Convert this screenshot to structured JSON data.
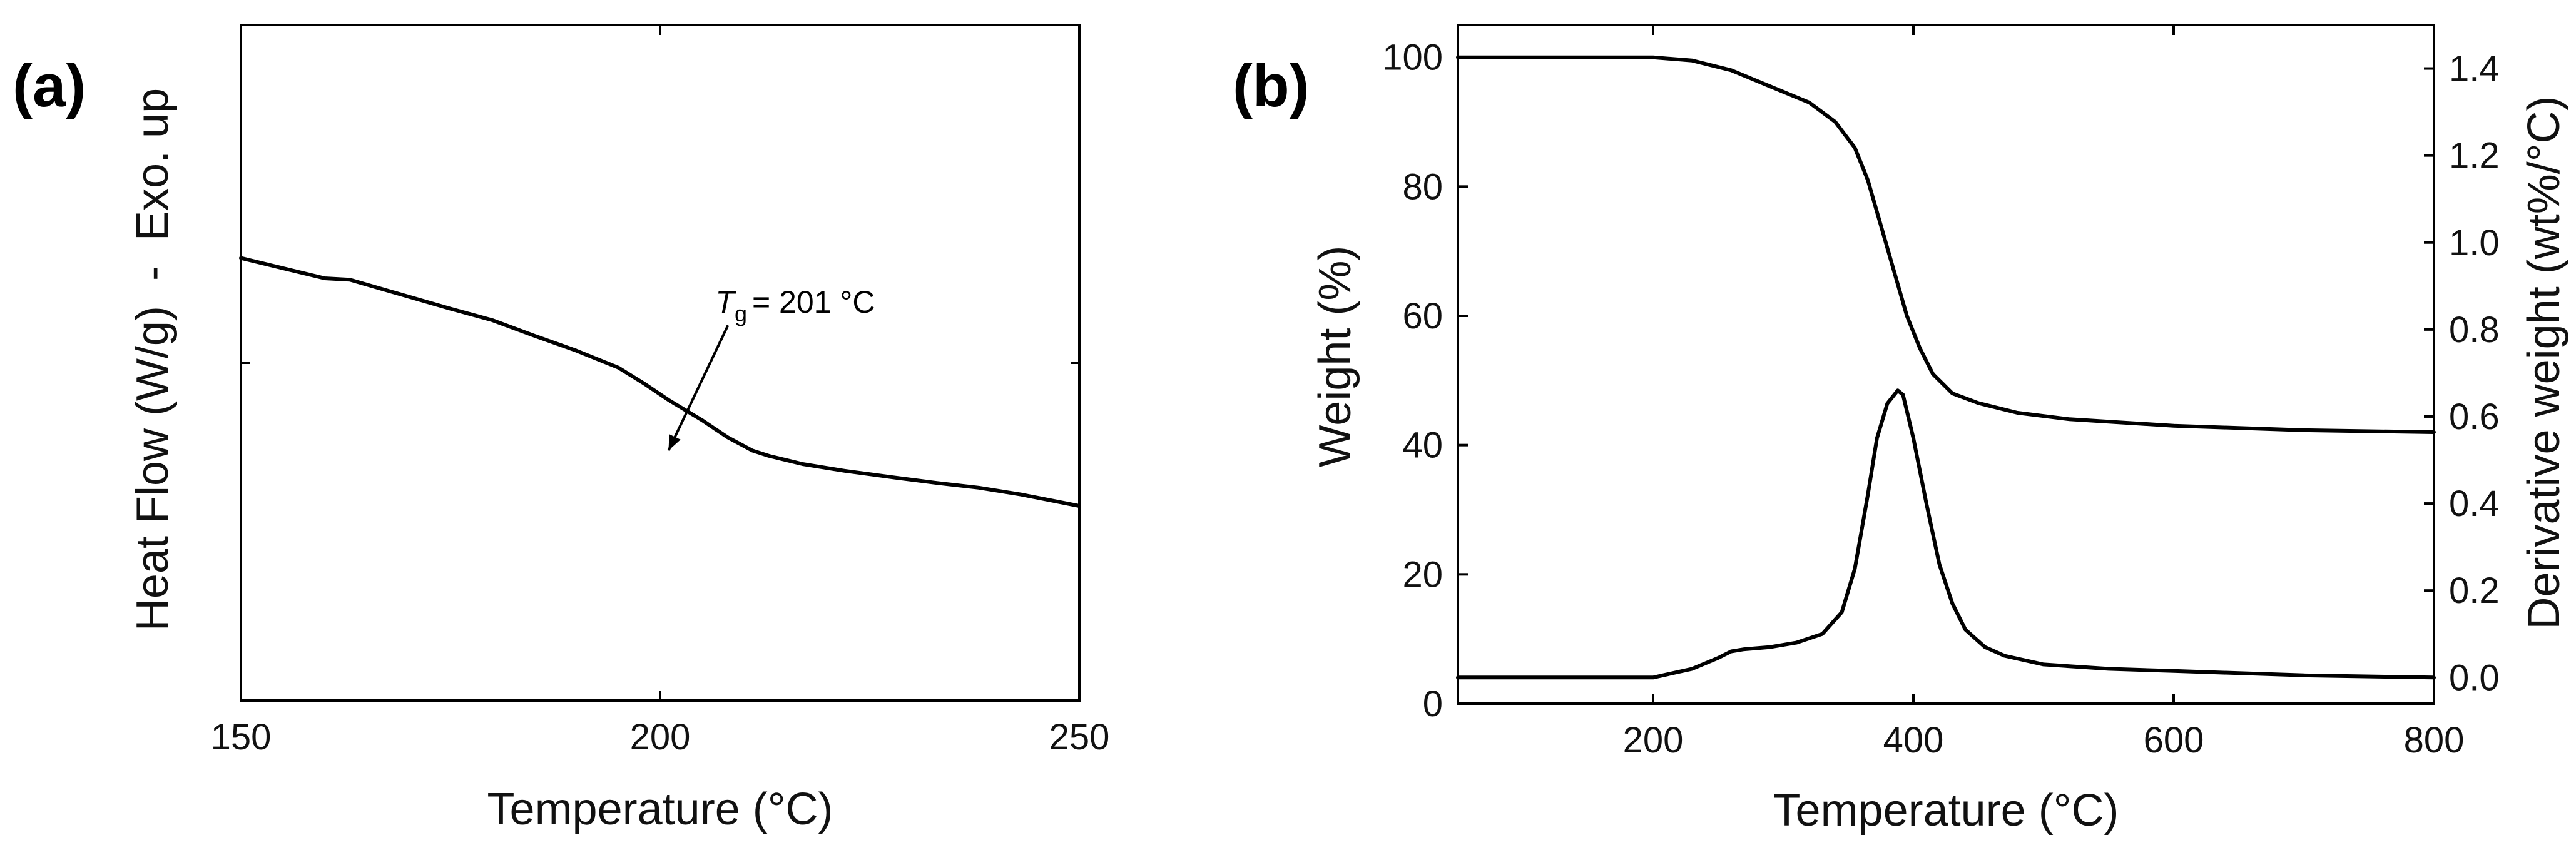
{
  "panels": {
    "a": {
      "label": "(a)"
    },
    "b": {
      "label": "(b)"
    }
  },
  "chart_data": [
    {
      "type": "line",
      "xlabel": "Temperature (°C)",
      "ylabel": "Heat Flow (W/g)  -  Exo. up",
      "xlim": [
        150,
        250
      ],
      "x_ticks": [
        150,
        200,
        250
      ],
      "y_tick_labels": "none",
      "grid": false,
      "annotation": {
        "label": "= 201 °C",
        "symbol": "T",
        "subscript": "g",
        "x": 201,
        "y": 0.372
      },
      "series": [
        {
          "x": [
            150,
            155,
            160,
            163,
            168,
            175,
            180,
            185,
            190,
            195,
            198,
            201,
            205,
            208,
            211,
            213,
            217,
            222,
            228,
            233,
            238,
            243,
            250
          ],
          "y": [
            0.655,
            0.64,
            0.625,
            0.623,
            0.605,
            0.58,
            0.563,
            0.54,
            0.518,
            0.493,
            0.47,
            0.445,
            0.415,
            0.39,
            0.37,
            0.362,
            0.35,
            0.34,
            0.33,
            0.322,
            0.315,
            0.305,
            0.288
          ]
        }
      ]
    },
    {
      "type": "line",
      "xlabel": "Temperature (°C)",
      "ylabel": "Weight (%)",
      "ylabel_right": "Derivative weight (wt%/°C)",
      "xlim": [
        50,
        800
      ],
      "ylim": [
        0,
        105
      ],
      "ylim_right": [
        -0.06,
        1.5
      ],
      "x_ticks": [
        200,
        400,
        600,
        800
      ],
      "y_ticks": [
        0,
        20,
        40,
        60,
        80,
        100
      ],
      "y_ticks_right": [
        0.0,
        0.2,
        0.4,
        0.6,
        0.8,
        1.0,
        1.2,
        1.4
      ],
      "y_tick_labels_right": [
        "0.0",
        "0.2",
        "0.4",
        "0.6",
        "0.8",
        "1.0",
        "1.2",
        "1.4"
      ],
      "grid": false,
      "series": [
        {
          "axis": "left",
          "x": [
            50,
            150,
            200,
            230,
            260,
            290,
            320,
            340,
            355,
            365,
            375,
            385,
            395,
            405,
            415,
            430,
            450,
            480,
            520,
            600,
            700,
            800
          ],
          "y": [
            100,
            100,
            100,
            99.5,
            98,
            95.5,
            93,
            90,
            86,
            81,
            74,
            67,
            60,
            55,
            51,
            48,
            46.5,
            45,
            44,
            43,
            42.3,
            42
          ]
        },
        {
          "axis": "right",
          "x": [
            50,
            100,
            150,
            200,
            230,
            250,
            260,
            270,
            290,
            310,
            330,
            345,
            355,
            365,
            372,
            380,
            388,
            392,
            400,
            410,
            420,
            430,
            440,
            455,
            470,
            500,
            550,
            600,
            700,
            800
          ],
          "y": [
            0.0,
            0.0,
            0.0,
            0.0,
            0.02,
            0.045,
            0.06,
            0.065,
            0.07,
            0.08,
            0.1,
            0.15,
            0.25,
            0.42,
            0.55,
            0.63,
            0.66,
            0.65,
            0.55,
            0.4,
            0.26,
            0.17,
            0.11,
            0.07,
            0.05,
            0.03,
            0.02,
            0.015,
            0.005,
            0.0
          ]
        }
      ]
    }
  ]
}
